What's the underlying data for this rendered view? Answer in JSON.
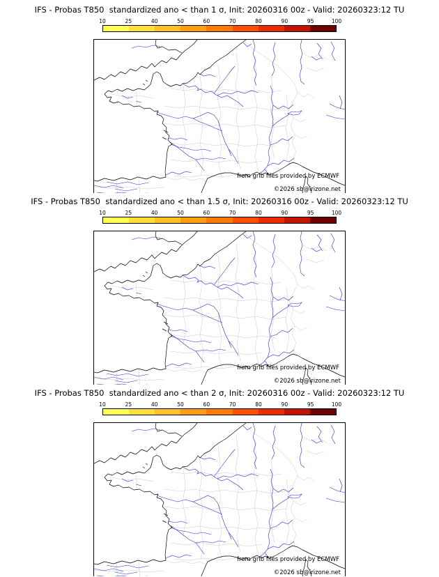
{
  "panels": [
    {
      "title": "IFS - Probas T850  standardized ano < than 1 σ, Init: 20260316 00z - Valid: 20260323:12 TU"
    },
    {
      "title": "IFS - Probas T850  standardized ano < than 1.5 σ, Init: 20260316 00z - Valid: 20260323:12 TU"
    },
    {
      "title": "IFS - Probas T850  standardized ano < than 2 σ, Init: 20260316 00z - Valid: 20260323:12 TU"
    }
  ],
  "colorbar": {
    "ticks": [
      "10",
      "25",
      "40",
      "50",
      "60",
      "70",
      "80",
      "90",
      "95",
      "100"
    ],
    "colors": [
      "#ffff54",
      "#ffe03a",
      "#ffc125",
      "#ff9d10",
      "#ff7c00",
      "#ff5000",
      "#ee2b00",
      "#c41300",
      "#6e0000"
    ]
  },
  "credits": {
    "ecmwf": "from grib files provided by ECMWF",
    "copyright": "©2026 sb@irizone.net"
  },
  "map": {
    "coastline_color": "#000000",
    "river_color": "#2b2bd4",
    "boundary_color": "#c9c9c9"
  }
}
